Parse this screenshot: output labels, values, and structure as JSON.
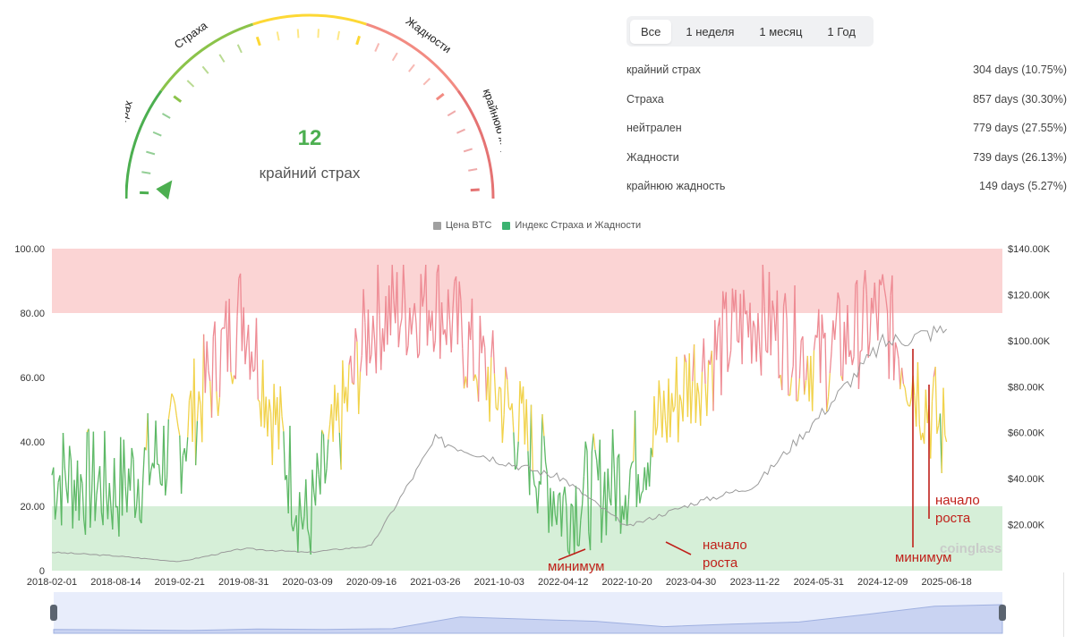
{
  "gauge": {
    "value": "12",
    "label": "крайний страх",
    "segments": [
      {
        "name": "крайний страх",
        "color": "#4caf50"
      },
      {
        "name": "Страха",
        "color": "#8bc34a"
      },
      {
        "name": "нейтрален",
        "color": "#fdd835"
      },
      {
        "name": "Жадности",
        "color": "#f28b82"
      },
      {
        "name": "крайнюю жадность",
        "color": "#e57373"
      }
    ],
    "value_color": "#4caf50"
  },
  "tabs": [
    {
      "label": "Все",
      "active": true
    },
    {
      "label": "1 неделя",
      "active": false
    },
    {
      "label": "1 месяц",
      "active": false
    },
    {
      "label": "1 Год",
      "active": false
    }
  ],
  "stats": [
    {
      "label": "крайний страх",
      "value": "304 days (10.75%)"
    },
    {
      "label": "Страха",
      "value": "857 days (30.30%)"
    },
    {
      "label": "нейтрален",
      "value": "779 days (27.55%)"
    },
    {
      "label": "Жадности",
      "value": "739 days (26.13%)"
    },
    {
      "label": "крайнюю жадность",
      "value": "149 days (5.27%)"
    }
  ],
  "legend": [
    {
      "label": "Цена BTC",
      "color": "#a0a0a0"
    },
    {
      "label": "Индекс Страха и Жадности",
      "color": "#3cb371"
    }
  ],
  "watermark": "coinglass",
  "chart_data": {
    "type": "line",
    "x": [
      "2018-02-01",
      "2018-08-14",
      "2019-02-21",
      "2019-08-31",
      "2020-03-09",
      "2020-09-16",
      "2021-03-26",
      "2021-10-03",
      "2022-04-12",
      "2022-10-20",
      "2023-04-30",
      "2023-11-22",
      "2024-05-31",
      "2024-12-09",
      "2025-06-18"
    ],
    "y_left_ticks": [
      "100.00",
      "80.00",
      "60.00",
      "40.00",
      "20.00",
      "0"
    ],
    "y_right_ticks": [
      "$140.00K",
      "$120.00K",
      "$100.00K",
      "$80.00K",
      "$60.00K",
      "$40.00K",
      "$20.00K"
    ],
    "ylim_left": [
      0,
      100
    ],
    "ylim_right": [
      0,
      140000
    ],
    "zones": [
      {
        "from": 80,
        "to": 100,
        "color": "#fbd4d4"
      },
      {
        "from": 0,
        "to": 20,
        "color": "#d6efd8"
      }
    ],
    "series": [
      {
        "name": "Индекс Страха и Жадности",
        "axis": "left",
        "values": [
          30,
          25,
          40,
          82,
          12,
          78,
          85,
          55,
          20,
          30,
          60,
          80,
          65,
          80,
          40
        ]
      },
      {
        "name": "Цена BTC",
        "axis": "right",
        "values": [
          8000,
          6400,
          3900,
          9600,
          7900,
          10800,
          57000,
          48000,
          40000,
          19000,
          29000,
          37000,
          67000,
          99000,
          105000
        ]
      }
    ],
    "annotations": [
      {
        "text": "минимум",
        "x": "2022-04-12",
        "y": 15000
      },
      {
        "text": "начало\nроста",
        "x": "2023-04-30",
        "y": 22000
      },
      {
        "text": "минимум",
        "x": "2025-01-15",
        "y": 12000
      },
      {
        "text": "начало\nроста",
        "x": "2025-03-01",
        "y": 30000
      }
    ]
  }
}
